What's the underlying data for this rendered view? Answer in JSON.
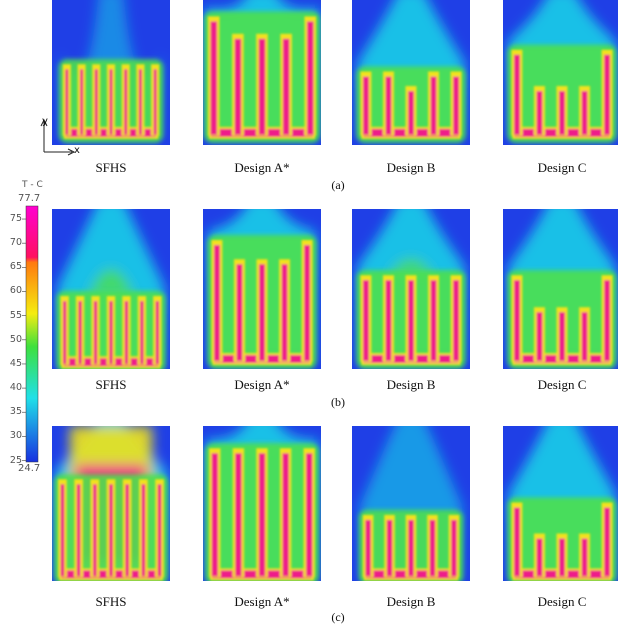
{
  "colorbar": {
    "title": "T - C",
    "max_label": "77.7",
    "min_label": "24.7",
    "max": 77.7,
    "min": 24.7,
    "ticks": [
      "75",
      "70",
      "65",
      "60",
      "55",
      "50",
      "45",
      "40",
      "35",
      "30",
      "25"
    ],
    "tick_values": [
      75,
      70,
      65,
      60,
      55,
      50,
      45,
      40,
      35,
      30,
      25
    ]
  },
  "axes_indicator": {
    "y": "y",
    "x": "x"
  },
  "rows": [
    {
      "label": "(a)",
      "panels": [
        "SFHS",
        "Design A*",
        "Design B",
        "Design C"
      ]
    },
    {
      "label": "(b)",
      "panels": [
        "SFHS",
        "Design A*",
        "Design B",
        "Design C"
      ]
    },
    {
      "label": "(c)",
      "panels": [
        "SFHS",
        "Design A*",
        "Design B",
        "Design C"
      ]
    }
  ],
  "colors": {
    "background_fluid": "#1f3fe6",
    "cool": "#18d6e8",
    "mid": "#4de04d",
    "warm": "#f2e21a",
    "hot": "#ee1e8a"
  }
}
